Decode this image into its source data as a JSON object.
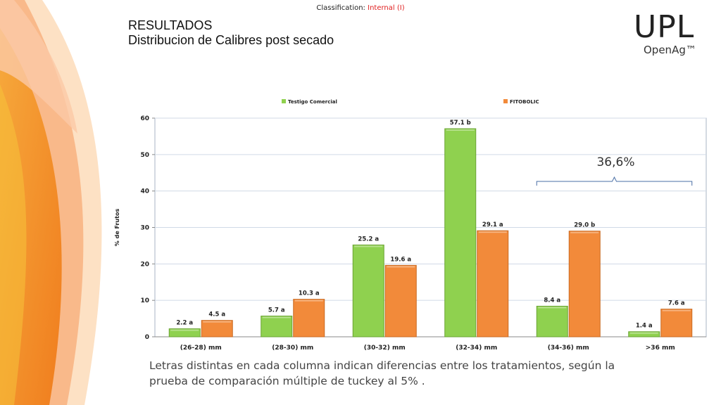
{
  "header": {
    "classification_label": "Classification:",
    "classification_value": "Internal (I)",
    "title_line1": "RESULTADOS",
    "title_line2": "Distribucion de Calibres post secado"
  },
  "logo": {
    "main": "UPL",
    "sub": "OpenAg™"
  },
  "footnote": "Letras distintas en cada columna indican diferencias entre los tratamientos, según la prueba de comparación múltiple de tuckey al 5% .",
  "colors": {
    "green": "#8fd14f",
    "orange": "#f28a3a",
    "grid": "#d0dae6"
  },
  "chart_data": {
    "type": "bar",
    "categories": [
      "(26-28) mm",
      "(28-30) mm",
      "(30-32) mm",
      "(32-34) mm",
      "(34-36) mm",
      ">36 mm"
    ],
    "series": [
      {
        "name": "Testigo Comercial",
        "values": [
          2.2,
          5.7,
          25.2,
          57.1,
          8.4,
          1.4
        ],
        "labels": [
          "2.2 a",
          "5.7 a",
          "25.2 a",
          "57.1 b",
          "8.4 a",
          "1.4 a"
        ]
      },
      {
        "name": "FITOBOLIC",
        "values": [
          4.5,
          10.3,
          19.6,
          29.1,
          29.0,
          7.6
        ],
        "labels": [
          "4.5 a",
          "10.3 a",
          "19.6 a",
          "29.1 a",
          "29.0 b",
          "7.6 a"
        ]
      }
    ],
    "ylabel": "% de Frutos",
    "ylim": [
      0,
      60
    ],
    "yticks": [
      0,
      10,
      20,
      30,
      40,
      50,
      60
    ],
    "grid": true,
    "legend_position": "top",
    "annotation": "36,6%"
  }
}
